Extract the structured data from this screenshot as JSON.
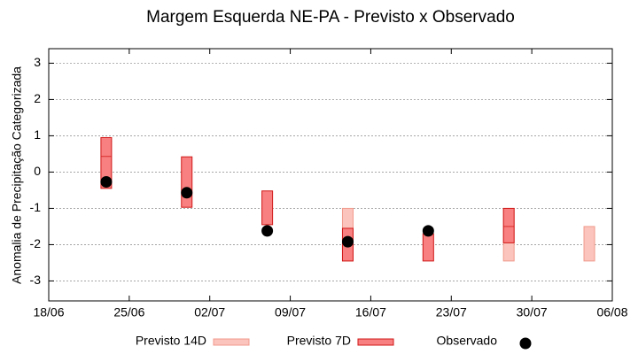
{
  "chart_data": {
    "type": "floating-bar",
    "title": "Margem Esquerda NE-PA - Previsto x Observado",
    "y_label": "Anomalia de Precipitação Categorizada",
    "x": [
      5,
      12,
      19,
      26,
      33,
      40,
      47
    ],
    "xlim": [
      0,
      49
    ],
    "xticks": [
      {
        "value": 0,
        "label": "18/06"
      },
      {
        "value": 7,
        "label": "25/06"
      },
      {
        "value": 14,
        "label": "02/07"
      },
      {
        "value": 21,
        "label": "09/07"
      },
      {
        "value": 28,
        "label": "16/07"
      },
      {
        "value": 35,
        "label": "23/07"
      },
      {
        "value": 42,
        "label": "30/07"
      },
      {
        "value": 49,
        "label": "06/08"
      }
    ],
    "ylim": [
      -3.55,
      3.4
    ],
    "yticks": [
      -3,
      -2,
      -1,
      0,
      1,
      2,
      3
    ],
    "grid": true,
    "series": [
      {
        "name": "Previsto 14D",
        "color": "#fbc4bc",
        "stroke": "#f09a8c",
        "high": [
          null,
          null,
          null,
          -1,
          null,
          -1,
          -1.5
        ],
        "low": [
          null,
          null,
          null,
          -2.45,
          null,
          -2.45,
          -2.45
        ]
      },
      {
        "name": "Previsto 7D",
        "color": "#f88080",
        "stroke": "#d01818",
        "high": [
          0.95,
          0.42,
          -0.52,
          -1.55,
          -1.7,
          -1,
          null
        ],
        "low": [
          -0.45,
          -0.97,
          -1.45,
          -2.45,
          -2.45,
          -1.95,
          null
        ],
        "mid": [
          0.43,
          null,
          null,
          null,
          null,
          -1.5,
          null
        ]
      },
      {
        "name": "Observado",
        "color": "#000000",
        "values": [
          -0.27,
          -0.57,
          -1.62,
          -1.92,
          -1.62,
          null,
          null
        ]
      }
    ]
  }
}
